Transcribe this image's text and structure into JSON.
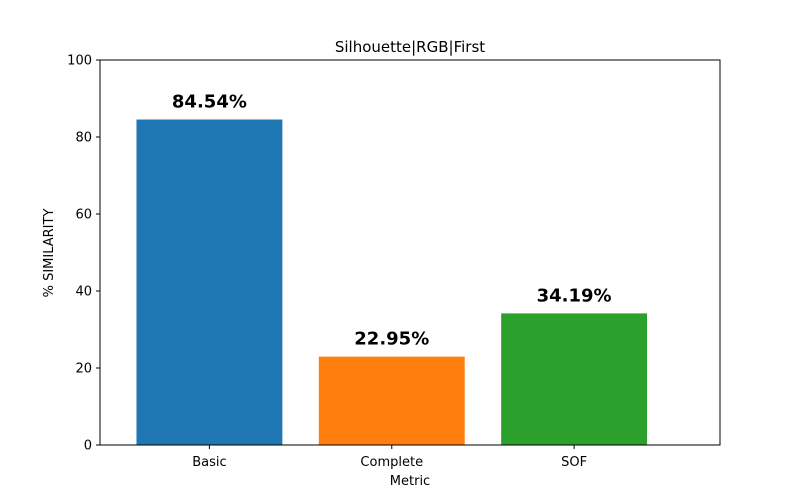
{
  "chart_data": {
    "type": "bar",
    "title": "Silhouette|RGB|First",
    "xlabel": "Metric",
    "ylabel": "% SIMILARITY",
    "categories": [
      "Basic",
      "Complete",
      "SOF"
    ],
    "values": [
      84.54,
      22.95,
      34.19
    ],
    "value_labels": [
      "84.54%",
      "22.95%",
      "34.19%"
    ],
    "colors": [
      "#1f77b4",
      "#ff7f0e",
      "#2ca02c"
    ],
    "ylim": [
      0,
      100
    ],
    "yticks": [
      0,
      20,
      40,
      60,
      80,
      100
    ],
    "ytick_labels": [
      "0",
      "20",
      "40",
      "60",
      "80",
      "100"
    ],
    "grid": false,
    "legend": false
  }
}
